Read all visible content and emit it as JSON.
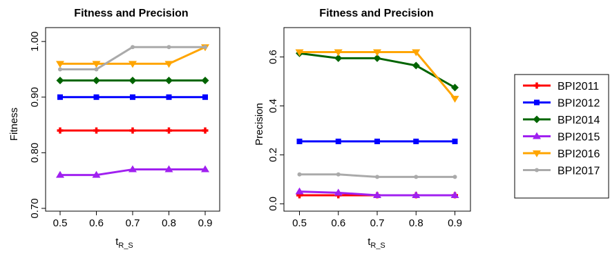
{
  "chart_data": [
    {
      "type": "line",
      "title": "Fitness and Precision",
      "xlabel": {
        "main": "t",
        "sub": "R_S"
      },
      "ylabel": "Fitness",
      "x": [
        0.5,
        0.6,
        0.7,
        0.8,
        0.9
      ],
      "xticks": [
        "0.5",
        "0.6",
        "0.7",
        "0.8",
        "0.9"
      ],
      "yticks": [
        "0.70",
        "0.80",
        "0.90",
        "1.00"
      ],
      "ytick_values": [
        0.7,
        0.8,
        0.9,
        1.0
      ],
      "xlim": [
        0.46,
        0.94
      ],
      "ylim": [
        0.695,
        1.025
      ],
      "series": [
        {
          "name": "BPI2011",
          "color": "#ff0000",
          "marker": "cross",
          "values": [
            0.84,
            0.84,
            0.84,
            0.84,
            0.84
          ]
        },
        {
          "name": "BPI2012",
          "color": "#0000ff",
          "marker": "square",
          "values": [
            0.9,
            0.9,
            0.9,
            0.9,
            0.9
          ]
        },
        {
          "name": "BPI2014",
          "color": "#006400",
          "marker": "diamond",
          "values": [
            0.93,
            0.93,
            0.93,
            0.93,
            0.93
          ]
        },
        {
          "name": "BPI2015",
          "color": "#a020f0",
          "marker": "triangle-up",
          "values": [
            0.76,
            0.76,
            0.77,
            0.77,
            0.77
          ]
        },
        {
          "name": "BPI2016",
          "color": "#ffa500",
          "marker": "triangle-down",
          "values": [
            0.96,
            0.96,
            0.96,
            0.96,
            0.99
          ]
        },
        {
          "name": "BPI2017",
          "color": "#aaaaaa",
          "marker": "dot",
          "values": [
            0.95,
            0.95,
            0.99,
            0.99,
            0.99
          ]
        }
      ]
    },
    {
      "type": "line",
      "title": "Fitness and Precision",
      "xlabel": {
        "main": "t",
        "sub": "R_S"
      },
      "ylabel": "Precision",
      "x": [
        0.5,
        0.6,
        0.7,
        0.8,
        0.9
      ],
      "xticks": [
        "0.5",
        "0.6",
        "0.7",
        "0.8",
        "0.9"
      ],
      "yticks": [
        "0.0",
        "0.2",
        "0.4",
        "0.6"
      ],
      "ytick_values": [
        0.0,
        0.2,
        0.4,
        0.6
      ],
      "xlim": [
        0.46,
        0.94
      ],
      "ylim": [
        -0.03,
        0.72
      ],
      "series": [
        {
          "name": "BPI2011",
          "color": "#ff0000",
          "marker": "cross",
          "values": [
            0.035,
            0.035,
            0.035,
            0.035,
            0.035
          ]
        },
        {
          "name": "BPI2012",
          "color": "#0000ff",
          "marker": "square",
          "values": [
            0.255,
            0.255,
            0.255,
            0.255,
            0.255
          ]
        },
        {
          "name": "BPI2014",
          "color": "#006400",
          "marker": "diamond",
          "values": [
            0.615,
            0.595,
            0.595,
            0.565,
            0.475
          ]
        },
        {
          "name": "BPI2015",
          "color": "#a020f0",
          "marker": "triangle-up",
          "values": [
            0.05,
            0.045,
            0.035,
            0.035,
            0.035
          ]
        },
        {
          "name": "BPI2016",
          "color": "#ffa500",
          "marker": "triangle-down",
          "values": [
            0.62,
            0.62,
            0.62,
            0.62,
            0.43
          ]
        },
        {
          "name": "BPI2017",
          "color": "#aaaaaa",
          "marker": "dot",
          "values": [
            0.12,
            0.12,
            0.11,
            0.11,
            0.11
          ]
        }
      ]
    }
  ],
  "legend": {
    "placement": "right",
    "entries": [
      "BPI2011",
      "BPI2012",
      "BPI2014",
      "BPI2015",
      "BPI2016",
      "BPI2017"
    ]
  }
}
